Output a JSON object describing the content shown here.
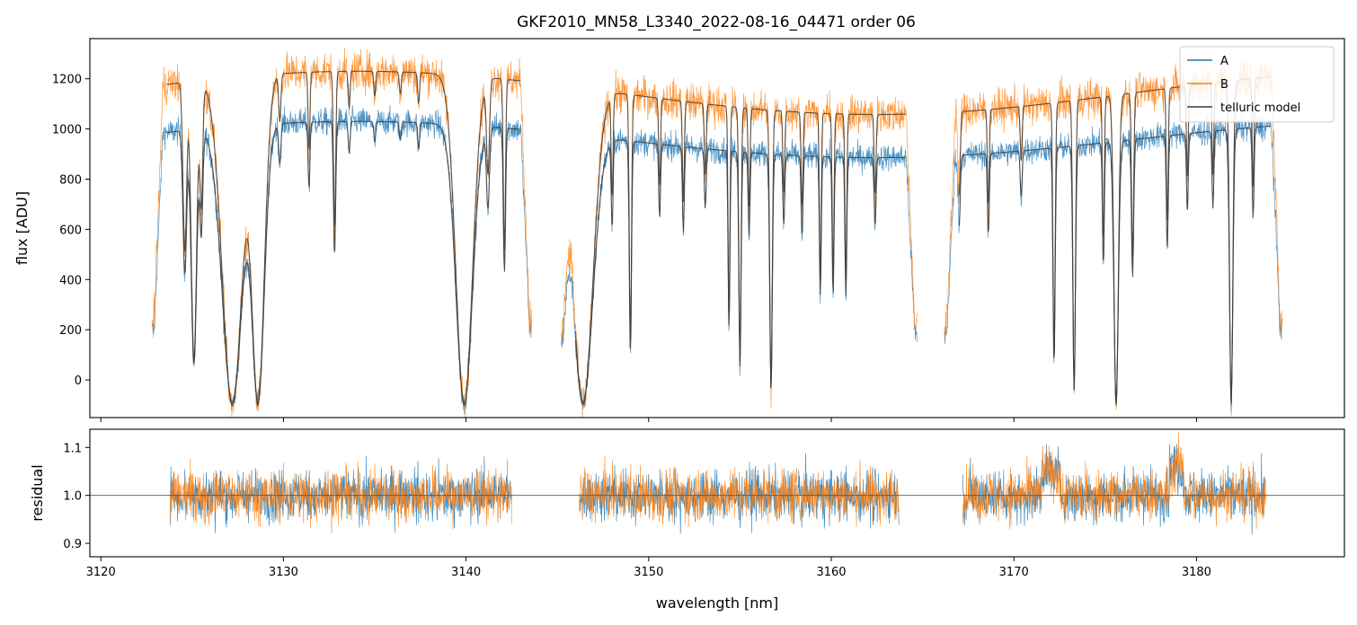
{
  "chart_data": [
    {
      "type": "line",
      "title": "GKF2010_MN58_L3340_2022-08-16_04471  order 06",
      "xlabel": "",
      "ylabel": "flux [ADU]",
      "xlim": [
        3119.4,
        3188.1
      ],
      "ylim": [
        -150,
        1360
      ],
      "yticks": [
        0,
        200,
        400,
        600,
        800,
        1000,
        1200
      ],
      "legend": {
        "placement": "top-right",
        "entries": [
          "A",
          "B",
          "telluric model"
        ]
      },
      "segments": [
        [
          3122.8,
          3143.6
        ],
        [
          3145.2,
          3164.7
        ],
        [
          3166.2,
          3184.7
        ]
      ],
      "series": [
        {
          "name": "A",
          "color": "#1f77b4",
          "continuum": 1030,
          "noise": 38
        },
        {
          "name": "B",
          "color": "#ff7f0e",
          "continuum": 1230,
          "noise": 55
        },
        {
          "name": "telluric model",
          "color": "#3d3d3d"
        }
      ],
      "absorption_lines": [
        [
          3124.6,
          0.55,
          0.1
        ],
        [
          3125.1,
          0.9,
          0.15
        ],
        [
          3125.5,
          0.4,
          0.08
        ],
        [
          3127.2,
          1.05,
          0.55
        ],
        [
          3128.6,
          1.05,
          0.35
        ],
        [
          3129.8,
          0.15,
          0.06
        ],
        [
          3131.4,
          0.25,
          0.05
        ],
        [
          3132.8,
          0.5,
          0.06
        ],
        [
          3133.6,
          0.12,
          0.05
        ],
        [
          3135.0,
          0.08,
          0.05
        ],
        [
          3136.4,
          0.07,
          0.05
        ],
        [
          3137.4,
          0.1,
          0.05
        ],
        [
          3139.9,
          1.05,
          0.45
        ],
        [
          3141.2,
          0.3,
          0.08
        ],
        [
          3142.1,
          0.55,
          0.06
        ],
        [
          3146.4,
          1.05,
          0.55
        ],
        [
          3148.0,
          0.35,
          0.05
        ],
        [
          3149.0,
          0.85,
          0.06
        ],
        [
          3150.6,
          0.3,
          0.05
        ],
        [
          3151.9,
          0.35,
          0.05
        ],
        [
          3153.1,
          0.25,
          0.05
        ],
        [
          3154.4,
          0.75,
          0.05
        ],
        [
          3155.0,
          0.9,
          0.06
        ],
        [
          3155.5,
          0.35,
          0.05
        ],
        [
          3156.7,
          1.0,
          0.07
        ],
        [
          3157.4,
          0.3,
          0.05
        ],
        [
          3158.4,
          0.35,
          0.05
        ],
        [
          3159.4,
          0.6,
          0.05
        ],
        [
          3160.1,
          0.6,
          0.05
        ],
        [
          3160.8,
          0.6,
          0.05
        ],
        [
          3162.4,
          0.3,
          0.05
        ],
        [
          3167.0,
          0.3,
          0.06
        ],
        [
          3168.6,
          0.35,
          0.05
        ],
        [
          3170.4,
          0.2,
          0.05
        ],
        [
          3172.2,
          0.9,
          0.06
        ],
        [
          3173.3,
          1.0,
          0.07
        ],
        [
          3174.9,
          0.5,
          0.05
        ],
        [
          3175.6,
          1.05,
          0.12
        ],
        [
          3176.5,
          0.55,
          0.06
        ],
        [
          3178.4,
          0.45,
          0.05
        ],
        [
          3179.5,
          0.3,
          0.05
        ],
        [
          3180.9,
          0.3,
          0.05
        ],
        [
          3181.9,
          1.05,
          0.09
        ],
        [
          3183.1,
          0.35,
          0.05
        ]
      ]
    },
    {
      "type": "line",
      "title": "",
      "xlabel": "wavelength [nm]",
      "ylabel": "residual",
      "xlim": [
        3119.4,
        3188.1
      ],
      "ylim": [
        0.872,
        1.138
      ],
      "xticks": [
        3120,
        3130,
        3140,
        3150,
        3160,
        3170,
        3180
      ],
      "yticks": [
        0.9,
        1.0,
        1.1
      ],
      "reference_line": 1.0,
      "segments": [
        [
          3123.8,
          3142.5
        ],
        [
          3146.2,
          3163.7
        ],
        [
          3167.2,
          3183.8
        ]
      ],
      "series": [
        {
          "name": "A",
          "color": "#1f77b4",
          "noise": 0.045
        },
        {
          "name": "B",
          "color": "#ff7f0e",
          "noise": 0.045
        }
      ]
    }
  ]
}
